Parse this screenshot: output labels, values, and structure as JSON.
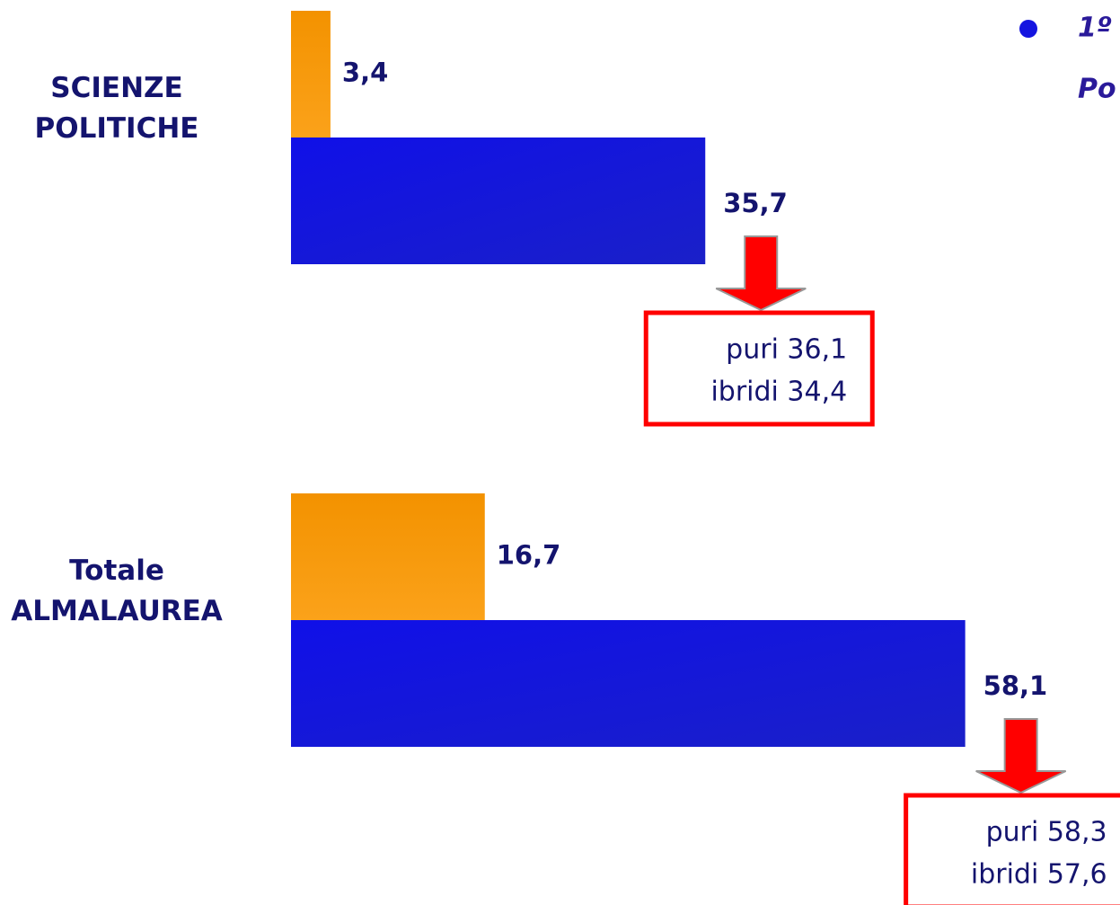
{
  "chart_data": {
    "type": "bar",
    "orientation": "horizontal",
    "categories": [
      [
        "SCIENZE",
        "POLITICHE"
      ],
      [
        "Totale",
        "ALMALAUREA"
      ]
    ],
    "series": [
      {
        "color": "#f59a00",
        "values": [
          3.4,
          16.7
        ],
        "value_labels": [
          "3,4",
          "16,7"
        ]
      },
      {
        "color": "#1414e0",
        "values": [
          35.7,
          58.1
        ],
        "value_labels": [
          "35,7",
          "58,1"
        ]
      }
    ],
    "annotations": [
      {
        "lines": [
          "puri 36,1",
          "ibridi 34,4"
        ]
      },
      {
        "lines": [
          "puri 58,3",
          "ibridi 57,6"
        ]
      }
    ],
    "legend_text": [
      "1º",
      "Po"
    ]
  }
}
